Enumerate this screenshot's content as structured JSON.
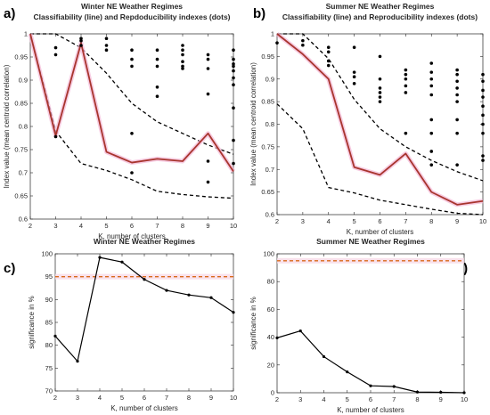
{
  "chart_data": [
    {
      "panel": "a)",
      "type": "line",
      "title": "Winter NE Weather Regimes",
      "subtitle": "Classifiability (line) and Repdoducibility indexes (dots)",
      "xlabel": "K, number of clusters",
      "ylabel": "Index value (mean centroid correlation)",
      "xlim": [
        2,
        10
      ],
      "ylim": [
        0.6,
        1.0
      ],
      "xticks": [
        2,
        3,
        4,
        5,
        6,
        7,
        8,
        9,
        10
      ],
      "yticks": [
        0.6,
        0.65,
        0.7,
        0.75,
        0.8,
        0.85,
        0.9,
        0.95,
        1
      ],
      "ytick_labels": [
        "0.6",
        "0.65",
        "0.7",
        "0.75",
        "0.8",
        "0.85",
        "0.9",
        "0.95",
        "1"
      ],
      "classifiability": {
        "color": "#a8352e",
        "x": [
          2,
          3,
          4,
          5,
          6,
          7,
          8,
          9,
          10
        ],
        "y": [
          1.0,
          0.78,
          0.98,
          0.745,
          0.722,
          0.73,
          0.725,
          0.785,
          0.703
        ]
      },
      "upper_bound": {
        "x": [
          2,
          3,
          4,
          5,
          6,
          7,
          8,
          9,
          10
        ],
        "y": [
          1.0,
          1.0,
          0.97,
          0.915,
          0.85,
          0.81,
          0.785,
          0.76,
          0.74
        ]
      },
      "lower_bound": {
        "x": [
          2,
          3,
          4,
          5,
          6,
          7,
          8,
          9,
          10
        ],
        "y": [
          1.0,
          0.79,
          0.72,
          0.705,
          0.685,
          0.66,
          0.653,
          0.648,
          0.645
        ]
      },
      "reproducibility_dots": [
        [
          3,
          0.97
        ],
        [
          3,
          0.955
        ],
        [
          3,
          0.778
        ],
        [
          4,
          0.99
        ],
        [
          4,
          0.985
        ],
        [
          4,
          0.975
        ],
        [
          5,
          0.99
        ],
        [
          5,
          0.975
        ],
        [
          5,
          0.965
        ],
        [
          6,
          0.965
        ],
        [
          6,
          0.945
        ],
        [
          6,
          0.93
        ],
        [
          6,
          0.785
        ],
        [
          6,
          0.7
        ],
        [
          7,
          0.965
        ],
        [
          7,
          0.945
        ],
        [
          7,
          0.93
        ],
        [
          7,
          0.885
        ],
        [
          7,
          0.865
        ],
        [
          8,
          0.975
        ],
        [
          8,
          0.965
        ],
        [
          8,
          0.955
        ],
        [
          8,
          0.94
        ],
        [
          8,
          0.93
        ],
        [
          8,
          0.925
        ],
        [
          9,
          0.955
        ],
        [
          9,
          0.945
        ],
        [
          9,
          0.925
        ],
        [
          9,
          0.87
        ],
        [
          9,
          0.725
        ],
        [
          9,
          0.68
        ],
        [
          10,
          0.965
        ],
        [
          10,
          0.945
        ],
        [
          10,
          0.935
        ],
        [
          10,
          0.93
        ],
        [
          10,
          0.92
        ],
        [
          10,
          0.905
        ],
        [
          10,
          0.89
        ],
        [
          10,
          0.84
        ],
        [
          10,
          0.77
        ],
        [
          10,
          0.72
        ]
      ]
    },
    {
      "panel": "b)",
      "type": "line",
      "title": "Summer NE Weather Regimes",
      "subtitle": "Classifiability (line) and Reproducibility indexes (dots)",
      "xlabel": "K, number of clusters",
      "ylabel": "Index value (mean centroid correlation)",
      "xlim": [
        2,
        10
      ],
      "ylim": [
        0.6,
        1.0
      ],
      "xticks": [
        2,
        3,
        4,
        5,
        6,
        7,
        8,
        9,
        10
      ],
      "yticks": [
        0.6,
        0.65,
        0.7,
        0.75,
        0.8,
        0.85,
        0.9,
        0.95,
        1
      ],
      "ytick_labels": [
        "0.6",
        "0.65",
        "0.7",
        "0.75",
        "0.8",
        "0.85",
        "0.9",
        "0.95",
        "1"
      ],
      "classifiability": {
        "color": "#a8352e",
        "x": [
          2,
          3,
          4,
          5,
          6,
          7,
          8,
          9,
          10
        ],
        "y": [
          1.0,
          0.955,
          0.9,
          0.705,
          0.688,
          0.735,
          0.65,
          0.622,
          0.63
        ]
      },
      "upper_bound": {
        "x": [
          2,
          3,
          4,
          5,
          6,
          7,
          8,
          9,
          10
        ],
        "y": [
          1.0,
          1.0,
          0.945,
          0.855,
          0.79,
          0.75,
          0.72,
          0.695,
          0.675
        ]
      },
      "lower_bound": {
        "x": [
          2,
          3,
          4,
          5,
          6,
          7,
          8,
          9,
          10
        ],
        "y": [
          0.845,
          0.79,
          0.66,
          0.648,
          0.632,
          0.622,
          0.612,
          0.603,
          0.6
        ]
      },
      "reproducibility_dots": [
        [
          2,
          0.98
        ],
        [
          3,
          0.985
        ],
        [
          3,
          0.975
        ],
        [
          4,
          0.97
        ],
        [
          4,
          0.96
        ],
        [
          4,
          0.94
        ],
        [
          4,
          0.93
        ],
        [
          5,
          0.97
        ],
        [
          5,
          0.915
        ],
        [
          5,
          0.905
        ],
        [
          5,
          0.89
        ],
        [
          6,
          0.95
        ],
        [
          6,
          0.9
        ],
        [
          6,
          0.88
        ],
        [
          6,
          0.87
        ],
        [
          6,
          0.86
        ],
        [
          6,
          0.85
        ],
        [
          7,
          0.92
        ],
        [
          7,
          0.91
        ],
        [
          7,
          0.9
        ],
        [
          7,
          0.885
        ],
        [
          7,
          0.87
        ],
        [
          7,
          0.78
        ],
        [
          8,
          0.935
        ],
        [
          8,
          0.915
        ],
        [
          8,
          0.9
        ],
        [
          8,
          0.885
        ],
        [
          8,
          0.865
        ],
        [
          8,
          0.81
        ],
        [
          8,
          0.78
        ],
        [
          8,
          0.74
        ],
        [
          8,
          0.71
        ],
        [
          9,
          0.92
        ],
        [
          9,
          0.91
        ],
        [
          9,
          0.895
        ],
        [
          9,
          0.88
        ],
        [
          9,
          0.865
        ],
        [
          9,
          0.85
        ],
        [
          9,
          0.81
        ],
        [
          9,
          0.78
        ],
        [
          9,
          0.71
        ],
        [
          10,
          0.91
        ],
        [
          10,
          0.895
        ],
        [
          10,
          0.875
        ],
        [
          10,
          0.86
        ],
        [
          10,
          0.84
        ],
        [
          10,
          0.82
        ],
        [
          10,
          0.8
        ],
        [
          10,
          0.78
        ],
        [
          10,
          0.73
        ],
        [
          10,
          0.72
        ]
      ]
    },
    {
      "panel": "c)",
      "type": "line",
      "title": "Winter NE Weather Regimes",
      "xlabel": "K, number of clusters",
      "ylabel": "significance in %",
      "xlim": [
        2,
        10
      ],
      "ylim": [
        70,
        100
      ],
      "xticks": [
        2,
        3,
        4,
        5,
        6,
        7,
        8,
        9,
        10
      ],
      "yticks": [
        70,
        75,
        80,
        85,
        90,
        95,
        100
      ],
      "ytick_labels": [
        "70",
        "75",
        "80",
        "85",
        "90",
        "95",
        "100"
      ],
      "series": {
        "x": [
          2,
          3,
          4,
          5,
          6,
          7,
          8,
          9,
          10
        ],
        "y": [
          82,
          76.5,
          99.2,
          98.2,
          94.4,
          92,
          91,
          90.4,
          87.2
        ]
      },
      "threshold": {
        "value": 95,
        "color": "#d9691b"
      }
    },
    {
      "panel": "d)",
      "type": "line",
      "title": "Summer NE Weather Regimes",
      "xlabel": "K, number of clusters",
      "ylabel": "significance in %",
      "xlim": [
        2,
        10
      ],
      "ylim": [
        0,
        100
      ],
      "xticks": [
        2,
        3,
        4,
        5,
        6,
        7,
        8,
        9,
        10
      ],
      "yticks": [
        0,
        20,
        40,
        60,
        80,
        100
      ],
      "ytick_labels": [
        "0",
        "20",
        "40",
        "60",
        "80",
        "100"
      ],
      "series": {
        "x": [
          2,
          3,
          4,
          5,
          6,
          7,
          8,
          9,
          10
        ],
        "y": [
          39.5,
          44.5,
          26,
          15,
          5,
          4.5,
          0.5,
          0.3,
          0
        ]
      },
      "threshold": {
        "value": 95,
        "color": "#d9691b"
      }
    }
  ]
}
